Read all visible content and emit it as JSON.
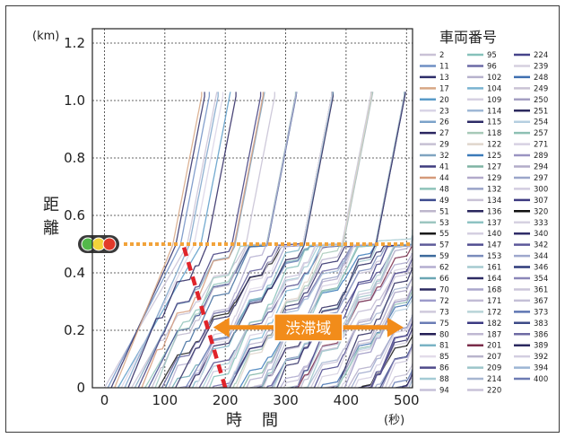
{
  "chart_data": {
    "type": "line",
    "title": "",
    "xlabel": "時　間",
    "ylabel": "距離",
    "x_unit": "(秒)",
    "y_unit": "(km)",
    "xlim": [
      -20,
      510
    ],
    "ylim": [
      0,
      1.25
    ],
    "x_ticks": [
      "0",
      "100",
      "200",
      "300",
      "400",
      "500"
    ],
    "x_tick_values": [
      0,
      100,
      200,
      300,
      400,
      500
    ],
    "y_ticks": [
      "0",
      "0.2",
      "0.4",
      "0.6",
      "0.8",
      "1.0",
      "1.2"
    ],
    "y_tick_values": [
      0,
      0.2,
      0.4,
      0.6,
      0.8,
      1.0,
      1.2
    ],
    "grid": "dotted",
    "signal_position_km": 0.5,
    "congestion_label": "渋滞域",
    "congestion_front": {
      "x": [
        200,
        130
      ],
      "y": [
        0,
        0.5
      ]
    },
    "congestion_span": {
      "x": [
        180,
        495
      ],
      "y": 0.21
    },
    "signal_release_times": [
      80,
      150,
      215,
      270,
      330,
      395,
      450,
      510
    ],
    "legend_title": "車両番号",
    "legend_items": [
      "2",
      "11",
      "13",
      "17",
      "20",
      "23",
      "26",
      "27",
      "29",
      "32",
      "41",
      "44",
      "48",
      "49",
      "51",
      "53",
      "55",
      "57",
      "59",
      "62",
      "66",
      "70",
      "72",
      "73",
      "75",
      "80",
      "81",
      "85",
      "86",
      "88",
      "94",
      "95",
      "96",
      "102",
      "104",
      "109",
      "114",
      "115",
      "118",
      "122",
      "125",
      "127",
      "129",
      "132",
      "134",
      "136",
      "137",
      "140",
      "147",
      "153",
      "161",
      "164",
      "168",
      "171",
      "172",
      "182",
      "187",
      "201",
      "207",
      "209",
      "214",
      "220",
      "224",
      "239",
      "248",
      "249",
      "250",
      "251",
      "254",
      "257",
      "271",
      "289",
      "294",
      "297",
      "300",
      "307",
      "320",
      "333",
      "340",
      "342",
      "344",
      "346",
      "354",
      "361",
      "367",
      "373",
      "383",
      "386",
      "389",
      "392",
      "394",
      "400"
    ],
    "palette": [
      "#c9c2d6",
      "#6f8fc4",
      "#2e2e6a",
      "#d7a784",
      "#5a9bc8",
      "#d9d4e6",
      "#7ba2c9",
      "#2b2660",
      "#c6c0d3",
      "#7fa4c0",
      "#3f3c7e",
      "#d59a7a",
      "#8ec3b9",
      "#3e4c8f",
      "#bdb6cc",
      "#9cc6c0",
      "#1a1a1a",
      "#5e5b99",
      "#3d6a9c",
      "#b4aed0",
      "#6aa6b3",
      "#2c2a60",
      "#9d9bcb",
      "#cfc9dc",
      "#6a7cb5",
      "#241f56",
      "#7ab3c5",
      "#e2dcea",
      "#4f4a8a",
      "#a4cbd5",
      "#c5c0d8",
      "#86c1ba",
      "#6c6aa6",
      "#b7b2cd",
      "#7ab3d1",
      "#d6d0e2",
      "#9fb8d6",
      "#2c2a66",
      "#a7c9b8",
      "#e0d6cc",
      "#3b7ab9",
      "#7fb3a4",
      "#b2aacb",
      "#9aa3c8",
      "#c9c2d6",
      "#2a275e",
      "#8ec3c3",
      "#d5cfe1",
      "#514e91",
      "#7a8cbc",
      "#a5cad0",
      "#2d2b63",
      "#aaa6cb",
      "#c2bcd5",
      "#b8d4d8",
      "#3b3a82",
      "#bfb8d2",
      "#7a2c4a",
      "#b9b4cc",
      "#9cc5c9",
      "#a7b6d1",
      "#c8c2d8",
      "#46438a",
      "#d5d0df",
      "#3f6fb0",
      "#c9c3d4",
      "#a49fc2",
      "#2c2a5e",
      "#b5cfe0",
      "#8dc0b3",
      "#d7d1e2",
      "#9a94c2",
      "#b2acc9",
      "#9ba6ca",
      "#d2cce0",
      "#3d3a80",
      "#111111",
      "#d6d1e1",
      "#2f2c68",
      "#5c589a",
      "#9ea8cd",
      "#2d3a7a",
      "#8a86b8",
      "#cbc5da",
      "#c4bfd6",
      "#5e76b2",
      "#3c4a86",
      "#6e6aa3",
      "#2b285f",
      "#d3cee0",
      "#9cb5d4",
      "#6d7bb3"
    ]
  }
}
